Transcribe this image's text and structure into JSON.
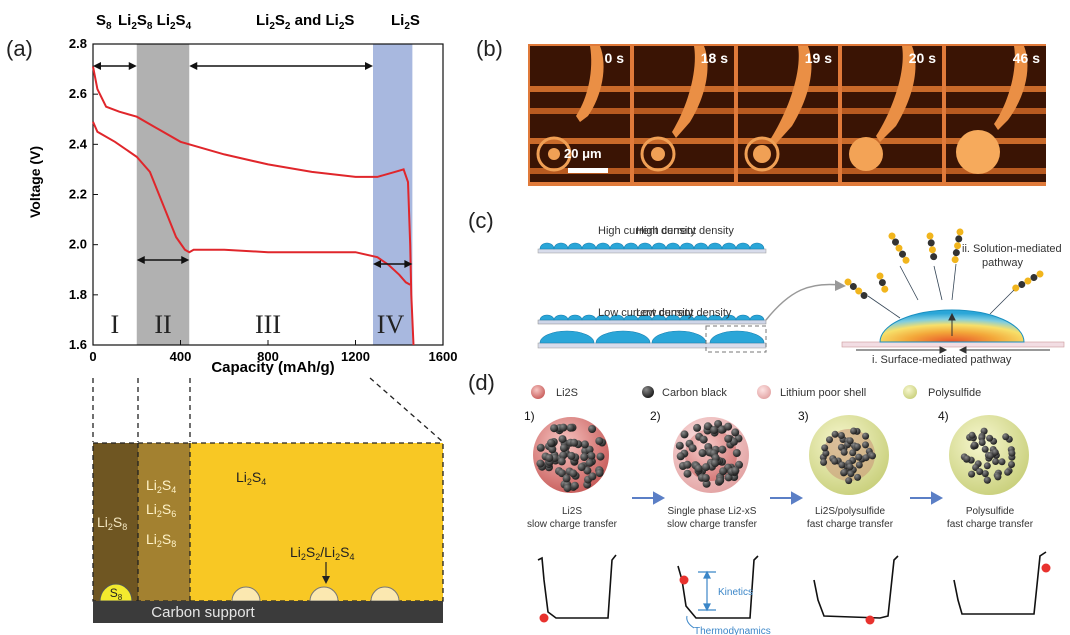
{
  "panels": {
    "a": "(a)",
    "b": "(b)",
    "c": "(c)",
    "d": "(d)"
  },
  "panel_a": {
    "top_labels": {
      "s8": "S8",
      "li2s8_li2s4": "Li2S8 Li2S4",
      "li2s2_and_li2s": "Li2S2 and Li2S",
      "li2s": "Li2S"
    },
    "regions": [
      "I",
      "II",
      "III",
      "IV"
    ],
    "schematic": {
      "col1": "Li2S8",
      "col2": [
        "Li2S4",
        "Li2S6",
        "Li2S8"
      ],
      "col3_top": "Li2S4",
      "col3_mid": "Li2S2/Li2S4",
      "bubble": "S8",
      "base": "Carbon support"
    }
  },
  "chart_data": {
    "type": "line",
    "xlabel": "Capacity (mAh/g)",
    "ylabel": "Voltage (V)",
    "xlim": [
      0,
      1600
    ],
    "ylim": [
      1.6,
      2.8
    ],
    "xticks": [
      0,
      400,
      800,
      1200,
      1600
    ],
    "yticks": [
      1.6,
      1.8,
      2.0,
      2.2,
      2.4,
      2.6,
      2.8
    ],
    "grid": false,
    "bands": [
      {
        "from": 200,
        "to": 440,
        "color": "#a8a8a8"
      },
      {
        "from": 1280,
        "to": 1460,
        "color": "#9fb0dc"
      }
    ],
    "series": [
      {
        "x": [
          0,
          20,
          60,
          120,
          200,
          300,
          400,
          600,
          800,
          1000,
          1200,
          1300,
          1380,
          1420,
          1440,
          1450,
          1455,
          1460,
          1465
        ],
        "y": [
          2.71,
          2.62,
          2.55,
          2.53,
          2.51,
          2.46,
          2.41,
          2.36,
          2.32,
          2.29,
          2.27,
          2.27,
          2.29,
          2.3,
          2.25,
          2.0,
          1.8,
          1.7,
          1.6
        ]
      },
      {
        "x": [
          0,
          20,
          100,
          200,
          260,
          320,
          380,
          420,
          440,
          460,
          600,
          800,
          1000,
          1200,
          1300,
          1350,
          1400,
          1430,
          1450
        ],
        "y": [
          2.49,
          2.45,
          2.41,
          2.35,
          2.29,
          2.16,
          2.03,
          1.98,
          1.97,
          1.98,
          1.98,
          1.97,
          1.97,
          1.97,
          1.95,
          1.92,
          1.88,
          1.85,
          1.84
        ]
      }
    ]
  },
  "panel_b": {
    "times": [
      "0 s",
      "18 s",
      "19 s",
      "20 s",
      "46 s"
    ],
    "scale_bar": "20 μm"
  },
  "panel_c": {
    "high": "High current density",
    "low": "Low current density",
    "solution": [
      "ii. Solution-mediated",
      "pathway"
    ],
    "surface": "i. Surface-mediated pathway"
  },
  "panel_d": {
    "legend": [
      "Li2S",
      "Carbon black",
      "Lithium poor shell",
      "Polysulfide"
    ],
    "steps": [
      {
        "num": "1)",
        "lines": [
          "Li2S",
          "slow charge transfer"
        ]
      },
      {
        "num": "2)",
        "lines": [
          "Single phase Li2-xS",
          "slow charge transfer"
        ]
      },
      {
        "num": "3)",
        "lines": [
          "Li2S/polysulfide",
          "fast charge transfer"
        ]
      },
      {
        "num": "4)",
        "lines": [
          "Polysulfide",
          "fast charge transfer"
        ]
      }
    ],
    "kinetics": "Kinetics",
    "thermo": "Thermodynamics"
  }
}
